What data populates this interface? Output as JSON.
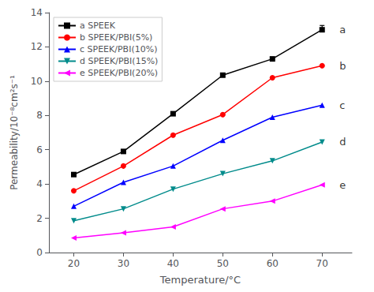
{
  "chart_data": {
    "type": "line",
    "x": [
      20,
      30,
      40,
      50,
      60,
      70
    ],
    "series": [
      {
        "name": "a SPEEK",
        "color": "#000000",
        "marker": "square",
        "values": [
          4.55,
          5.9,
          8.1,
          10.35,
          11.3,
          13.0
        ],
        "error_upper": [
          null,
          null,
          null,
          null,
          null,
          0.25
        ]
      },
      {
        "name": "b SPEEK/PBI(5%)",
        "color": "#ff0000",
        "marker": "circle",
        "values": [
          3.6,
          5.05,
          6.85,
          8.05,
          10.2,
          10.9
        ]
      },
      {
        "name": "c SPEEK/PBI(10%)",
        "color": "#0000ff",
        "marker": "triangle_up",
        "values": [
          2.7,
          4.1,
          5.05,
          6.55,
          7.9,
          8.6
        ]
      },
      {
        "name": "d SPEEK/PBI(15%)",
        "color": "#008b8b",
        "marker": "triangle_down",
        "values": [
          1.85,
          2.55,
          3.7,
          4.6,
          5.35,
          6.45
        ]
      },
      {
        "name": "e SPEEK/PBI(20%)",
        "color": "#ff00ff",
        "marker": "triangle_left",
        "values": [
          0.85,
          1.15,
          1.5,
          2.55,
          3.0,
          3.95
        ]
      }
    ],
    "annotations": [
      {
        "text": "a",
        "x": 73.5,
        "y": 13.0
      },
      {
        "text": "b",
        "x": 73.5,
        "y": 10.9
      },
      {
        "text": "c",
        "x": 73.5,
        "y": 8.6
      },
      {
        "text": "d",
        "x": 73.5,
        "y": 6.45
      },
      {
        "text": "e",
        "x": 73.5,
        "y": 3.95
      }
    ],
    "xlabel": "Temperature/°C",
    "ylabel": "Permeability/10⁻⁸cm²s⁻¹",
    "xlim": [
      15,
      76
    ],
    "ylim": [
      0,
      14
    ],
    "xticks": [
      20,
      30,
      40,
      50,
      60,
      70
    ],
    "yticks": [
      0,
      2,
      4,
      6,
      8,
      10,
      12,
      14
    ],
    "grid": false,
    "legend": "upper left"
  }
}
